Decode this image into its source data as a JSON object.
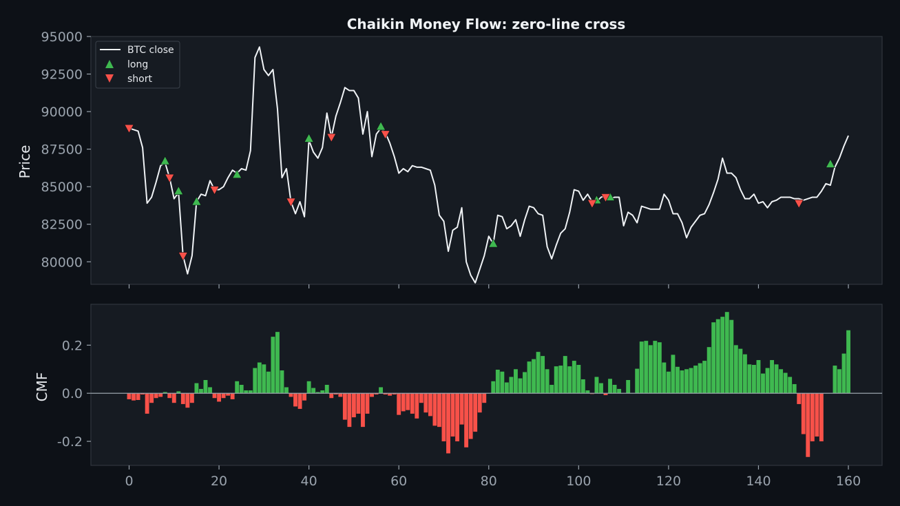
{
  "chart_data": [
    {
      "type": "line",
      "title": "Chaikin Money Flow: zero-line cross",
      "xlabel": "",
      "ylabel": "Price",
      "xlim": [
        -8.5,
        167.5
      ],
      "ylim": [
        78500,
        95000
      ],
      "yticks": [
        80000,
        82500,
        85000,
        87500,
        90000,
        92500,
        95000
      ],
      "xticks": [
        0,
        20,
        40,
        60,
        80,
        100,
        120,
        140,
        160
      ],
      "grid": false,
      "legend": "top-left",
      "legend_entries": [
        "BTC close",
        "long",
        "short"
      ],
      "colors": {
        "line": "#f0f3f6",
        "long": "#3fb950",
        "short": "#f85149"
      },
      "series": [
        {
          "name": "BTC close",
          "values": [
            88900,
            88800,
            88700,
            87600,
            83900,
            84300,
            85300,
            86400,
            86600,
            85600,
            84200,
            84600,
            80400,
            79200,
            80400,
            84000,
            84500,
            84400,
            85400,
            84800,
            84800,
            85000,
            85600,
            86100,
            85900,
            86200,
            86100,
            87400,
            93600,
            94300,
            92800,
            92400,
            92800,
            90200,
            85600,
            86200,
            84000,
            83200,
            84000,
            83000,
            88100,
            87300,
            86900,
            87600,
            89900,
            88300,
            89700,
            90600,
            91600,
            91400,
            91400,
            90900,
            88500,
            90000,
            87000,
            88500,
            88900,
            88600,
            87900,
            87000,
            85900,
            86200,
            86000,
            86400,
            86300,
            86300,
            86200,
            86100,
            85100,
            83100,
            82700,
            80700,
            82100,
            82300,
            83600,
            80000,
            79100,
            78600,
            79500,
            80400,
            81700,
            81200,
            83100,
            83000,
            82200,
            82400,
            82800,
            81700,
            82800,
            83700,
            83600,
            83200,
            83100,
            81000,
            80200,
            81100,
            81900,
            82200,
            83300,
            84800,
            84700,
            84100,
            84500,
            84000,
            84000,
            84300,
            84400,
            84200,
            84300,
            84300,
            82400,
            83300,
            83100,
            82600,
            83700,
            83600,
            83500,
            83500,
            83500,
            84500,
            84100,
            83200,
            83200,
            82600,
            81600,
            82300,
            82700,
            83100,
            83200,
            83800,
            84600,
            85500,
            86900,
            85900,
            85900,
            85600,
            84800,
            84200,
            84200,
            84500,
            83900,
            84000,
            83600,
            84000,
            84100,
            84300,
            84300,
            84300,
            84200,
            84200,
            84100,
            84200,
            84300,
            84300,
            84700,
            85200,
            85100,
            86300,
            86900,
            87700,
            88400
          ]
        },
        {
          "name": "long",
          "marker": "triangle-up",
          "x": [
            8,
            11,
            15,
            24,
            40,
            56,
            81,
            104,
            107,
            156
          ],
          "y": [
            86700,
            84700,
            84000,
            85800,
            88200,
            89000,
            81200,
            84100,
            84300,
            86500
          ]
        },
        {
          "name": "short",
          "marker": "triangle-down",
          "x": [
            0,
            9,
            12,
            19,
            36,
            45,
            57,
            103,
            106,
            149
          ],
          "y": [
            88900,
            85600,
            80400,
            84800,
            84000,
            88300,
            88500,
            83900,
            84300,
            83900
          ]
        }
      ]
    },
    {
      "type": "bar",
      "xlabel": "",
      "ylabel": "CMF",
      "xlim": [
        -8.5,
        167.5
      ],
      "ylim": [
        -0.3,
        0.37
      ],
      "yticks": [
        -0.2,
        0.0,
        0.2
      ],
      "ytick_labels": [
        "-0.2",
        "0.0",
        "0.2"
      ],
      "xticks": [
        0,
        20,
        40,
        60,
        80,
        100,
        120,
        140,
        160
      ],
      "grid": false,
      "colors": {
        "positive": "#3fb950",
        "negative": "#f85149",
        "zero_line": "#9aa3ad"
      },
      "series": [
        {
          "values": [
            -0.025,
            -0.03,
            -0.028,
            -0.005,
            -0.085,
            -0.04,
            -0.02,
            -0.015,
            0.005,
            -0.02,
            -0.04,
            0.008,
            -0.045,
            -0.06,
            -0.04,
            0.042,
            0.018,
            0.055,
            0.025,
            -0.02,
            -0.035,
            -0.02,
            -0.01,
            -0.025,
            0.05,
            0.035,
            0.012,
            0.012,
            0.105,
            0.128,
            0.12,
            0.09,
            0.235,
            0.255,
            0.095,
            0.025,
            -0.015,
            -0.055,
            -0.065,
            -0.03,
            0.05,
            0.022,
            0.005,
            0.012,
            0.035,
            -0.02,
            -0.005,
            -0.015,
            -0.11,
            -0.14,
            -0.1,
            -0.085,
            -0.14,
            -0.085,
            -0.015,
            -0.005,
            0.025,
            -0.005,
            -0.01,
            -0.005,
            -0.09,
            -0.075,
            -0.07,
            -0.085,
            -0.105,
            -0.04,
            -0.08,
            -0.095,
            -0.135,
            -0.14,
            -0.2,
            -0.25,
            -0.18,
            -0.2,
            -0.13,
            -0.225,
            -0.19,
            -0.16,
            -0.08,
            -0.04,
            0.0,
            0.05,
            0.098,
            0.09,
            0.045,
            0.068,
            0.1,
            0.062,
            0.088,
            0.132,
            0.142,
            0.172,
            0.155,
            0.1,
            0.035,
            0.112,
            0.115,
            0.155,
            0.112,
            0.135,
            0.118,
            0.058,
            0.012,
            -0.003,
            0.068,
            0.042,
            -0.008,
            0.06,
            0.035,
            0.018,
            0.0,
            0.055,
            0.0,
            0.102,
            0.215,
            0.218,
            0.2,
            0.218,
            0.212,
            0.128,
            0.09,
            0.16,
            0.11,
            0.095,
            0.1,
            0.105,
            0.115,
            0.125,
            0.135,
            0.192,
            0.295,
            0.308,
            0.318,
            0.338,
            0.305,
            0.2,
            0.185,
            0.162,
            0.12,
            0.118,
            0.138,
            0.082,
            0.105,
            0.138,
            0.12,
            0.1,
            0.085,
            0.068,
            0.038,
            -0.045,
            -0.17,
            -0.265,
            -0.2,
            -0.18,
            -0.2,
            0.0,
            0.0,
            0.115,
            0.1,
            0.165,
            0.262
          ]
        }
      ]
    }
  ]
}
